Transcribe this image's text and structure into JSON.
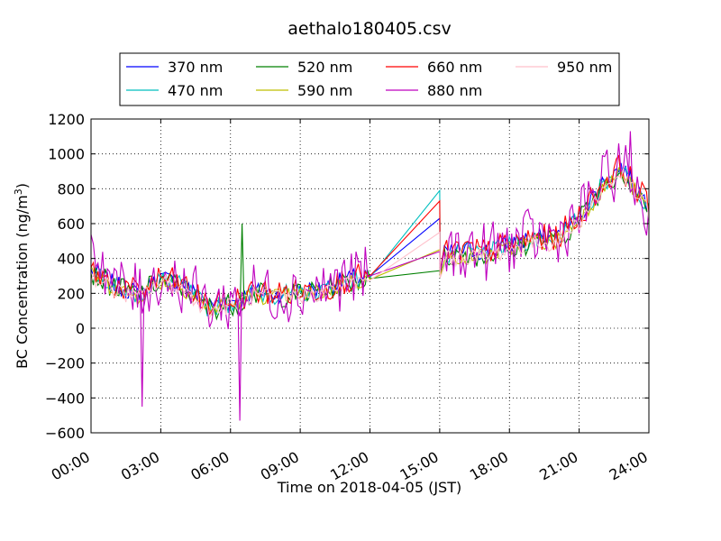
{
  "chart_data": {
    "type": "line",
    "title": "aethalo180405.csv",
    "xlabel": "Time on 2018-04-05 (JST)",
    "ylabel": "BC Concentration (ng/m",
    "ylabel_superscript": "3",
    "ylabel_suffix": ")",
    "xlim": [
      "00:00",
      "24:00"
    ],
    "ylim": [
      -600,
      1200
    ],
    "x_ticks": [
      "00:00",
      "03:00",
      "06:00",
      "09:00",
      "12:00",
      "15:00",
      "18:00",
      "21:00",
      "24:00"
    ],
    "y_ticks": [
      -600,
      -400,
      -200,
      0,
      200,
      400,
      600,
      800,
      1000,
      1200
    ],
    "grid": true,
    "legend_position": "top",
    "gap": {
      "start": "12:00",
      "end": "15:00"
    },
    "series": [
      {
        "name": "370 nm",
        "color": "#0000ff",
        "anchors": [
          [
            0,
            330
          ],
          [
            1,
            250
          ],
          [
            2,
            200
          ],
          [
            3,
            290
          ],
          [
            4,
            250
          ],
          [
            5,
            130
          ],
          [
            6,
            150
          ],
          [
            7,
            210
          ],
          [
            8,
            200
          ],
          [
            9,
            210
          ],
          [
            10,
            230
          ],
          [
            11,
            280
          ],
          [
            11.9,
            300
          ],
          [
            15.1,
            420
          ],
          [
            16,
            450
          ],
          [
            17,
            440
          ],
          [
            18,
            480
          ],
          [
            19,
            520
          ],
          [
            20,
            520
          ],
          [
            21,
            640
          ],
          [
            22,
            830
          ],
          [
            22.8,
            930
          ],
          [
            23.5,
            800
          ],
          [
            24,
            710
          ]
        ],
        "gap_end_value": 630
      },
      {
        "name": "470 nm",
        "color": "#00bfbf",
        "anchors": [
          [
            0,
            320
          ],
          [
            1,
            240
          ],
          [
            2,
            190
          ],
          [
            3,
            280
          ],
          [
            4,
            240
          ],
          [
            5,
            120
          ],
          [
            6,
            140
          ],
          [
            7,
            200
          ],
          [
            8,
            190
          ],
          [
            9,
            200
          ],
          [
            10,
            220
          ],
          [
            11,
            270
          ],
          [
            11.9,
            290
          ],
          [
            15.1,
            410
          ],
          [
            16,
            440
          ],
          [
            17,
            430
          ],
          [
            18,
            470
          ],
          [
            19,
            510
          ],
          [
            20,
            510
          ],
          [
            21,
            630
          ],
          [
            22,
            820
          ],
          [
            22.8,
            920
          ],
          [
            23.5,
            790
          ],
          [
            24,
            700
          ]
        ],
        "gap_end_value": 790
      },
      {
        "name": "520 nm",
        "color": "#008000",
        "anchors": [
          [
            0,
            320
          ],
          [
            1,
            240
          ],
          [
            2,
            185
          ],
          [
            3,
            275
          ],
          [
            4,
            235
          ],
          [
            5,
            115
          ],
          [
            6,
            135
          ],
          [
            7,
            195
          ],
          [
            8,
            185
          ],
          [
            9,
            195
          ],
          [
            10,
            215
          ],
          [
            11,
            265
          ],
          [
            11.9,
            285
          ],
          [
            15.1,
            400
          ],
          [
            16,
            430
          ],
          [
            17,
            420
          ],
          [
            18,
            460
          ],
          [
            19,
            500
          ],
          [
            20,
            500
          ],
          [
            21,
            620
          ],
          [
            22,
            810
          ],
          [
            22.8,
            910
          ],
          [
            23.5,
            780
          ],
          [
            24,
            690
          ]
        ],
        "gap_end_value": 330
      },
      {
        "name": "590 nm",
        "color": "#bfbf00",
        "anchors": [
          [
            0,
            310
          ],
          [
            1,
            230
          ],
          [
            2,
            180
          ],
          [
            3,
            270
          ],
          [
            4,
            230
          ],
          [
            5,
            110
          ],
          [
            6,
            130
          ],
          [
            7,
            190
          ],
          [
            8,
            180
          ],
          [
            9,
            190
          ],
          [
            10,
            210
          ],
          [
            11,
            260
          ],
          [
            11.9,
            280
          ],
          [
            15.1,
            395
          ],
          [
            16,
            420
          ],
          [
            17,
            415
          ],
          [
            18,
            455
          ],
          [
            19,
            495
          ],
          [
            20,
            495
          ],
          [
            21,
            615
          ],
          [
            22,
            800
          ],
          [
            22.8,
            900
          ],
          [
            23.5,
            770
          ],
          [
            24,
            680
          ]
        ],
        "gap_end_value": 450
      },
      {
        "name": "660 nm",
        "color": "#ff0000",
        "anchors": [
          [
            0,
            330
          ],
          [
            1,
            250
          ],
          [
            2,
            200
          ],
          [
            3,
            290
          ],
          [
            4,
            250
          ],
          [
            5,
            130
          ],
          [
            6,
            150
          ],
          [
            7,
            210
          ],
          [
            8,
            200
          ],
          [
            9,
            210
          ],
          [
            10,
            230
          ],
          [
            11,
            280
          ],
          [
            11.9,
            300
          ],
          [
            15.1,
            420
          ],
          [
            16,
            450
          ],
          [
            17,
            440
          ],
          [
            18,
            480
          ],
          [
            19,
            520
          ],
          [
            20,
            520
          ],
          [
            21,
            640
          ],
          [
            22,
            830
          ],
          [
            22.8,
            930
          ],
          [
            23.5,
            800
          ],
          [
            24,
            700
          ]
        ],
        "gap_end_value": 730
      },
      {
        "name": "880 nm",
        "color": "#bf00bf",
        "anchors": [
          [
            0,
            500
          ],
          [
            1,
            250
          ],
          [
            2,
            200
          ],
          [
            3,
            290
          ],
          [
            4,
            250
          ],
          [
            5,
            130
          ],
          [
            6,
            150
          ],
          [
            7,
            210
          ],
          [
            8,
            200
          ],
          [
            9,
            210
          ],
          [
            10,
            230
          ],
          [
            11,
            280
          ],
          [
            11.9,
            300
          ],
          [
            15.1,
            420
          ],
          [
            16,
            450
          ],
          [
            17,
            440
          ],
          [
            18,
            480
          ],
          [
            19,
            520
          ],
          [
            20,
            520
          ],
          [
            21,
            640
          ],
          [
            22,
            830
          ],
          [
            22.8,
            930
          ],
          [
            23.5,
            800
          ],
          [
            24,
            600
          ]
        ],
        "gap_end_value": 440
      },
      {
        "name": "950 nm",
        "color": "#ffc0cb",
        "anchors": [
          [
            0,
            300
          ],
          [
            1,
            220
          ],
          [
            2,
            175
          ],
          [
            3,
            265
          ],
          [
            4,
            225
          ],
          [
            5,
            105
          ],
          [
            6,
            125
          ],
          [
            7,
            185
          ],
          [
            8,
            175
          ],
          [
            9,
            185
          ],
          [
            10,
            205
          ],
          [
            11,
            255
          ],
          [
            11.9,
            275
          ],
          [
            15.1,
            390
          ],
          [
            16,
            415
          ],
          [
            17,
            410
          ],
          [
            18,
            450
          ],
          [
            19,
            490
          ],
          [
            20,
            490
          ],
          [
            21,
            610
          ],
          [
            22,
            790
          ],
          [
            22.8,
            890
          ],
          [
            23.5,
            760
          ],
          [
            24,
            670
          ]
        ],
        "gap_end_value": 550
      }
    ],
    "annotations": [
      {
        "x": 2.2,
        "y": -450,
        "series": "880 nm"
      },
      {
        "x": 6.4,
        "y": -530,
        "series": "880 nm"
      },
      {
        "x": 23.2,
        "y": 1130,
        "series": "880 nm"
      },
      {
        "x": 6.5,
        "y": 600,
        "series": "520 nm"
      }
    ]
  }
}
